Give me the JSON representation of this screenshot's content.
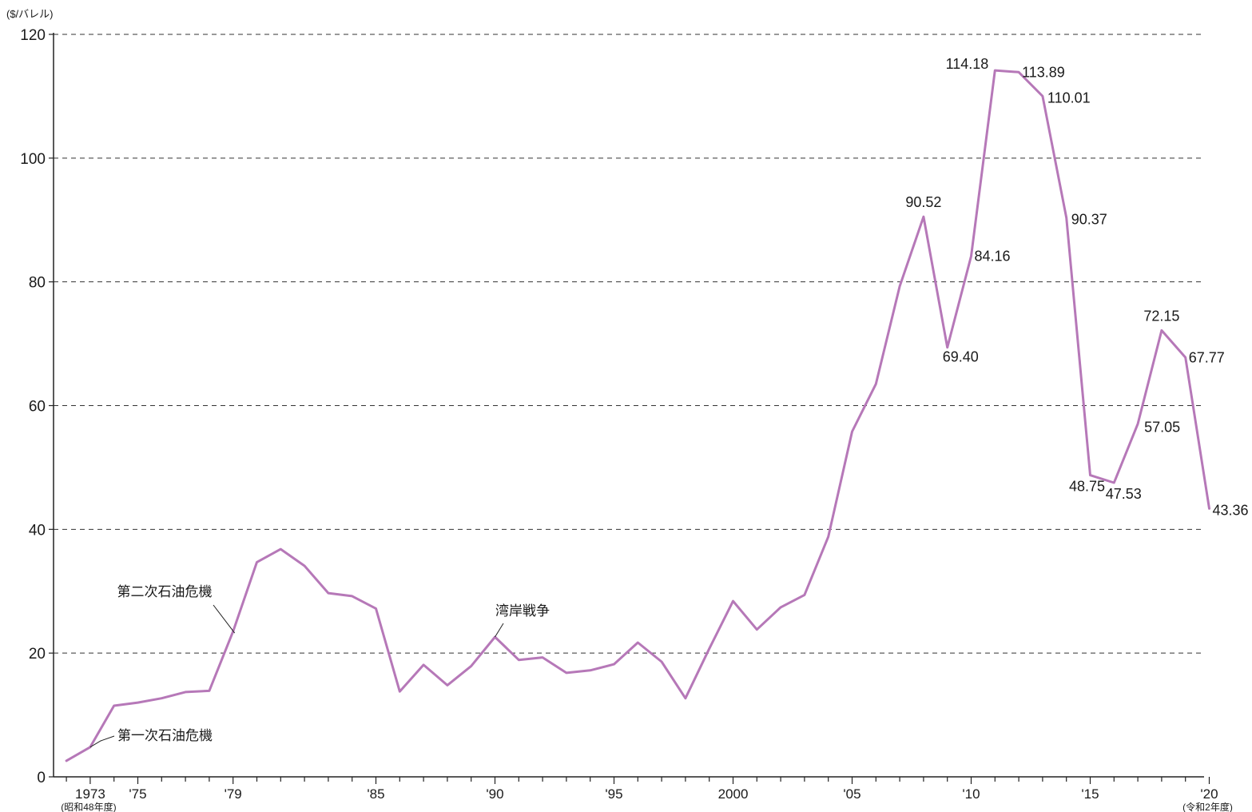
{
  "chart_data": {
    "type": "line",
    "ylabel": "($/バレル)",
    "xlabel": "",
    "ylim": [
      0,
      120
    ],
    "yticks": [
      0,
      20,
      40,
      60,
      80,
      100,
      120
    ],
    "grid": true,
    "x_ticks": [
      {
        "year": 1973,
        "label": "1973",
        "sub": "(昭和48年度)"
      },
      {
        "year": 1975,
        "label": "'75"
      },
      {
        "year": 1979,
        "label": "'79"
      },
      {
        "year": 1985,
        "label": "'85"
      },
      {
        "year": 1990,
        "label": "'90"
      },
      {
        "year": 1995,
        "label": "'95"
      },
      {
        "year": 2000,
        "label": "2000"
      },
      {
        "year": 2005,
        "label": "'05"
      },
      {
        "year": 2010,
        "label": "'10"
      },
      {
        "year": 2015,
        "label": "'15"
      },
      {
        "year": 2020,
        "label": "'20",
        "sub": "(令和2年度)"
      }
    ],
    "series": [
      {
        "color": "#b678b8",
        "x": [
          1972,
          1973,
          1974,
          1975,
          1976,
          1977,
          1978,
          1979,
          1980,
          1981,
          1982,
          1983,
          1984,
          1985,
          1986,
          1987,
          1988,
          1989,
          1990,
          1991,
          1992,
          1993,
          1994,
          1995,
          1996,
          1997,
          1998,
          1999,
          2000,
          2001,
          2002,
          2003,
          2004,
          2005,
          2006,
          2007,
          2008,
          2009,
          2010,
          2011,
          2012,
          2013,
          2014,
          2015,
          2016,
          2017,
          2018,
          2019,
          2020
        ],
        "values": [
          2.6,
          4.8,
          11.5,
          12.0,
          12.7,
          13.7,
          13.9,
          23.5,
          34.7,
          36.8,
          34.1,
          29.7,
          29.2,
          27.2,
          13.8,
          18.1,
          14.8,
          17.9,
          22.6,
          18.9,
          19.3,
          16.8,
          17.2,
          18.2,
          21.7,
          18.6,
          12.7,
          20.7,
          28.4,
          23.8,
          27.4,
          29.4,
          38.8,
          55.8,
          63.5,
          79.3,
          90.52,
          69.4,
          84.16,
          114.18,
          113.89,
          110.01,
          90.37,
          48.75,
          47.53,
          57.05,
          72.15,
          67.77,
          43.36
        ]
      }
    ],
    "data_labels": [
      {
        "year": 2008,
        "text": "90.52"
      },
      {
        "year": 2009,
        "text": "69.40"
      },
      {
        "year": 2010,
        "text": "84.16"
      },
      {
        "year": 2011,
        "text": "114.18"
      },
      {
        "year": 2012,
        "text": "113.89"
      },
      {
        "year": 2013,
        "text": "110.01"
      },
      {
        "year": 2014,
        "text": "90.37"
      },
      {
        "year": 2015,
        "text": "48.75"
      },
      {
        "year": 2016,
        "text": "47.53"
      },
      {
        "year": 2017,
        "text": "57.05"
      },
      {
        "year": 2018,
        "text": "72.15"
      },
      {
        "year": 2019,
        "text": "67.77"
      },
      {
        "year": 2020,
        "text": "43.36"
      }
    ],
    "annotations": [
      {
        "year": 1973,
        "text": "第一次石油危機"
      },
      {
        "year": 1979,
        "text": "第二次石油危機"
      },
      {
        "year": 1990,
        "text": "湾岸戦争"
      }
    ]
  }
}
